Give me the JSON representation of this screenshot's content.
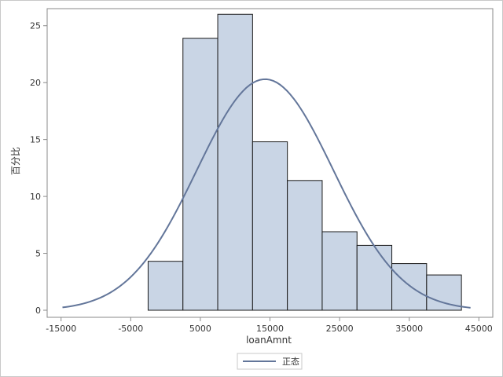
{
  "chart_data": {
    "type": "bar",
    "subtype": "histogram-with-normal-density",
    "xlabel": "loanAmnt",
    "ylabel": "百分比",
    "xlim": [
      -17000,
      47000
    ],
    "ylim": [
      0,
      26.5
    ],
    "x_ticks": [
      "-15000",
      "-5000",
      "5000",
      "15000",
      "25000",
      "35000",
      "45000"
    ],
    "y_ticks": [
      "0",
      "5",
      "10",
      "15",
      "20",
      "25"
    ],
    "bins": [
      {
        "start": -2500,
        "end": 2500,
        "value": 4.3
      },
      {
        "start": 2500,
        "end": 7500,
        "value": 23.9
      },
      {
        "start": 7500,
        "end": 12500,
        "value": 26.0
      },
      {
        "start": 12500,
        "end": 17500,
        "value": 14.8
      },
      {
        "start": 17500,
        "end": 22500,
        "value": 11.4
      },
      {
        "start": 22500,
        "end": 27500,
        "value": 6.9
      },
      {
        "start": 27500,
        "end": 32500,
        "value": 5.7
      },
      {
        "start": 32500,
        "end": 37500,
        "value": 4.1
      },
      {
        "start": 37500,
        "end": 42500,
        "value": 3.1
      }
    ],
    "normal_curve": {
      "name": "正态",
      "mean": 14300,
      "sd": 9800,
      "peak": 20.3,
      "x_range": [
        -14800,
        43800
      ]
    },
    "legend": {
      "label": "正态",
      "placement": "bottom-center"
    },
    "grid": false,
    "colors": {
      "bar_fill": "#c9d5e5",
      "bar_edge": "#1a1a1a",
      "curve": "#63769a",
      "axis": "#8a8a8a"
    }
  }
}
